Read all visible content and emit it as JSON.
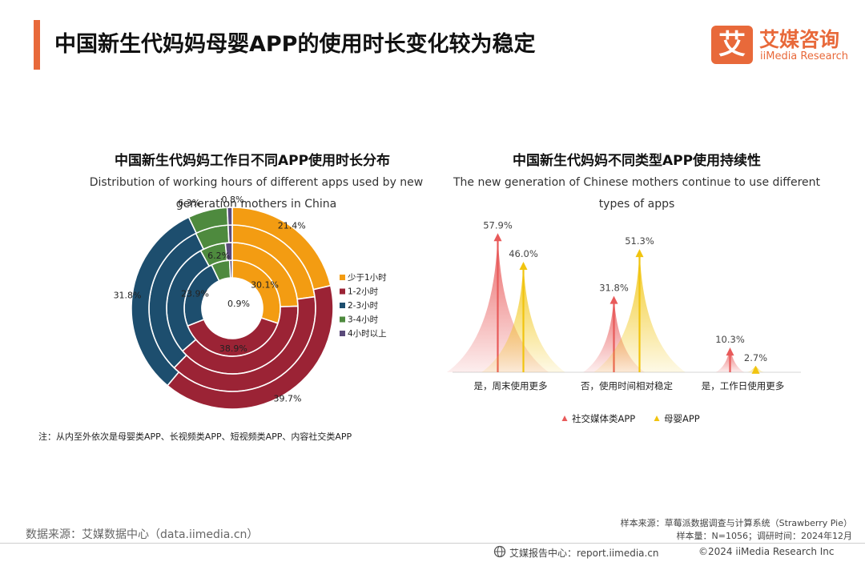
{
  "header": {
    "title": "中国新生代妈妈母婴APP的使用时长变化较为稳定",
    "logo_mark": "艾",
    "logo_cn": "艾媒咨询",
    "logo_en": "iiMedia Research",
    "accent": "#e8693a"
  },
  "left_chart": {
    "title_cn": "中国新生代妈妈工作日不同APP使用时长分布",
    "title_en": "Distribution of working hours of different apps used by new generation mothers in China"
  },
  "right_chart": {
    "title_cn": "中国新生代妈妈不同类型APP使用持续性",
    "title_en": "The new generation of Chinese mothers continue to use different types of apps"
  },
  "chart_data": [
    {
      "type": "pie",
      "variant": "nested-donut",
      "categories": [
        "少于1小时",
        "1-2小时",
        "2-3小时",
        "3-4小时",
        "4小时以上"
      ],
      "colors": [
        "#f39c12",
        "#9b2335",
        "#1d4e6e",
        "#4e8a3e",
        "#5a4a7a"
      ],
      "rings": [
        {
          "values": [
            30.1,
            38.9,
            23.9,
            6.2,
            0.9
          ]
        },
        {
          "values": [
            24.5,
            39.2,
            28.3,
            6.3,
            1.7
          ]
        },
        {
          "values": [
            22.8,
            39.5,
            30.5,
            6.4,
            0.8
          ]
        },
        {
          "values": [
            21.4,
            39.7,
            31.8,
            6.3,
            0.8
          ]
        }
      ],
      "visible_labels": [
        {
          "ring": 0,
          "index": 0,
          "text": "30.1%"
        },
        {
          "ring": 0,
          "index": 1,
          "text": "38.9%"
        },
        {
          "ring": 0,
          "index": 2,
          "text": "23.9%"
        },
        {
          "ring": 0,
          "index": 3,
          "text": "6.2%"
        },
        {
          "ring": 0,
          "index": 4,
          "text": "0.9%"
        },
        {
          "ring": 3,
          "index": 0,
          "text": "21.4%"
        },
        {
          "ring": 3,
          "index": 1,
          "text": "39.7%"
        },
        {
          "ring": 3,
          "index": 2,
          "text": "31.8%"
        },
        {
          "ring": 3,
          "index": 3,
          "text": "6.3%"
        },
        {
          "ring": 3,
          "index": 4,
          "text": "0.8%"
        }
      ],
      "legend_position": "right"
    },
    {
      "type": "bar",
      "variant": "peak",
      "categories": [
        "是，周末使用更多",
        "否，使用时间相对稳定",
        "是，工作日使用更多"
      ],
      "series": [
        {
          "name": "社交媒体类APP",
          "values": [
            57.9,
            31.8,
            10.3
          ],
          "labels": [
            "57.9%",
            "31.8%",
            "10.3%"
          ],
          "color": "#e85a5a"
        },
        {
          "name": "母婴APP",
          "values": [
            46.0,
            51.3,
            2.7
          ],
          "labels": [
            "46.0%",
            "51.3%",
            "2.7%"
          ],
          "color": "#f1c40f"
        }
      ],
      "ylim": [
        0,
        60
      ],
      "legend_position": "bottom"
    }
  ],
  "note": "注：从内至外依次是母婴类APP、长视频类APP、短视频类APP、内容社交类APP",
  "source_left": "数据来源：艾媒数据中心（data.iimedia.cn）",
  "source_right_1": "样本来源：草莓派数据调查与计算系统（Strawberry Pie）",
  "source_right_2": "样本量：N=1056；调研时间：2024年12月",
  "footer": {
    "report_center": "艾媒报告中心：report.iimedia.cn",
    "copyright": "©2024  iiMedia Research  Inc"
  }
}
